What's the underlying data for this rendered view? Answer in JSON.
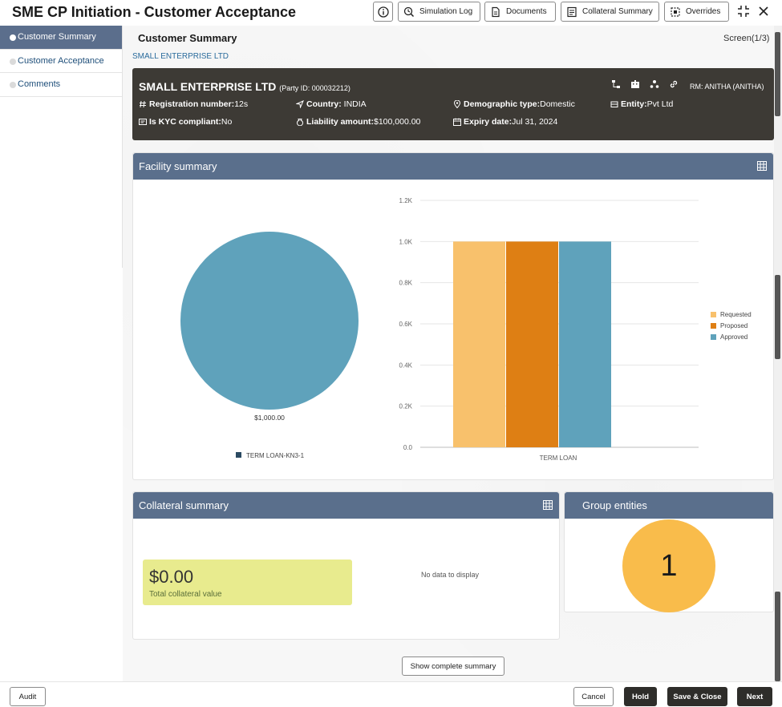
{
  "header": {
    "title": "SME CP Initiation - Customer Acceptance",
    "buttons": {
      "simulation_log": "Simulation Log",
      "documents": "Documents",
      "collateral_summary": "Collateral Summary",
      "overrides": "Overrides"
    },
    "icons": [
      "info-icon",
      "simulation-icon",
      "documents-icon",
      "collateral-icon",
      "overrides-icon",
      "collapse-icon",
      "close-icon"
    ]
  },
  "nav": {
    "items": [
      {
        "label": "Customer Summary",
        "active": true
      },
      {
        "label": "Customer Acceptance",
        "active": false
      },
      {
        "label": "Comments",
        "active": false
      }
    ]
  },
  "page": {
    "title": "Customer Summary",
    "screen_indicator": "Screen(1/3)",
    "party_link": "SMALL ENTERPRISE LTD"
  },
  "party": {
    "name": "SMALL ENTERPRISE LTD",
    "party_id": "(Party ID: 000032212)",
    "rm": "RM: ANITHA (ANITHA)",
    "registration": {
      "label": "Registration number:",
      "value": "12s"
    },
    "country": {
      "label": "Country:",
      "value": " INDIA"
    },
    "demographic": {
      "label": "Demographic type:",
      "value": "Domestic"
    },
    "entity": {
      "label": "Entity:",
      "value": "Pvt Ltd"
    },
    "kyc": {
      "label": "Is KYC compliant:",
      "value": "No"
    },
    "liability": {
      "label": "Liability amount:",
      "value": "$100,000.00"
    },
    "expiry": {
      "label": "Expiry date:",
      "value": "Jul 31, 2024"
    }
  },
  "facility_summary": {
    "title": "Facility summary"
  },
  "chart_data": [
    {
      "type": "pie",
      "labels": [
        "TERM LOAN-KN3-1"
      ],
      "values": [
        1000
      ],
      "data_labels": [
        "$1,000.00"
      ],
      "colors": [
        "#5fa2bb"
      ],
      "legend": [
        {
          "name": "TERM LOAN-KN3-1",
          "color": "#2b4a62"
        }
      ],
      "legend_placement": "bottom"
    },
    {
      "type": "bar",
      "categories": [
        "TERM LOAN"
      ],
      "series": [
        {
          "name": "Requested",
          "values": [
            1000
          ],
          "color": "#f8c16c"
        },
        {
          "name": "Proposed",
          "values": [
            1000
          ],
          "color": "#de7f14"
        },
        {
          "name": "Approved",
          "values": [
            1000
          ],
          "color": "#5fa2bb"
        }
      ],
      "ylim": [
        0,
        1200
      ],
      "yticks": [
        "0.0",
        "0.2K",
        "0.4K",
        "0.6K",
        "0.8K",
        "1.0K",
        "1.2K"
      ],
      "grid": true,
      "legend_placement": "right"
    }
  ],
  "collateral_summary": {
    "title": "Collateral summary",
    "total_value": "$0.00",
    "total_label": "Total collateral value",
    "no_data": "No data to display"
  },
  "group_entities": {
    "title": "Group entities",
    "count": "1"
  },
  "show_complete_summary": "Show complete summary",
  "footer": {
    "audit": "Audit",
    "cancel": "Cancel",
    "hold": "Hold",
    "save_close": "Save & Close",
    "next": "Next"
  }
}
